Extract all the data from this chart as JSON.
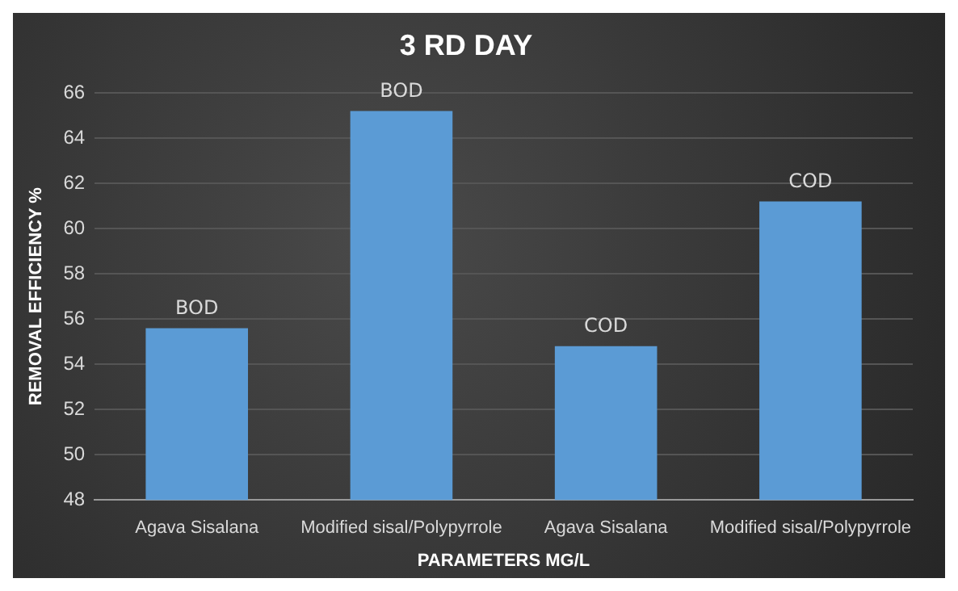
{
  "chart_data": {
    "type": "bar",
    "title": "3 RD DAY",
    "xlabel": "PARAMETERS MG/L",
    "ylabel": "REMOVAL EFFICIENCY %",
    "categories": [
      "Agava Sisalana",
      "Modified sisal/Polypyrrole",
      "Agava Sisalana",
      "Modified sisal/Polypyrrole"
    ],
    "values": [
      55.6,
      65.2,
      54.8,
      61.2
    ],
    "value_labels": [
      "BOD",
      "BOD",
      "COD",
      "COD"
    ],
    "color": "#5b9bd5",
    "ylim": [
      48,
      66
    ],
    "yticks": [
      48,
      50,
      52,
      54,
      56,
      58,
      60,
      62,
      64,
      66
    ],
    "grid": "y"
  }
}
